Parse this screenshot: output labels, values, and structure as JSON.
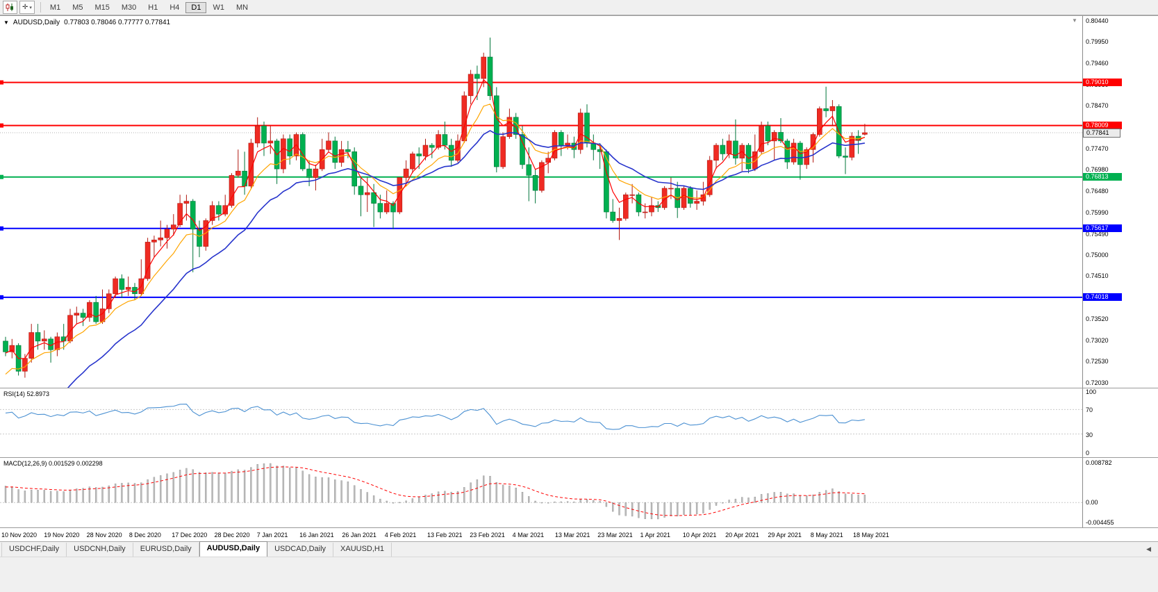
{
  "toolbar": {
    "cursor_glyph": "✛",
    "caret": "▾",
    "timeframes": [
      "M1",
      "M5",
      "M15",
      "M30",
      "H1",
      "H4",
      "D1",
      "W1",
      "MN"
    ],
    "active_timeframe": "D1"
  },
  "chart": {
    "collapse_icon": "▼",
    "shift_marker": "▼",
    "symbol": "AUDUSD,Daily",
    "ohlc_text": "0.77803 0.78046 0.77777 0.77841"
  },
  "price_axis": {
    "labels": [
      "0.80440",
      "0.79950",
      "0.79460",
      "0.78960",
      "0.78470",
      "0.77980",
      "0.77470",
      "0.76980",
      "0.76480",
      "0.75990",
      "0.75490",
      "0.75000",
      "0.74510",
      "0.74010",
      "0.73520",
      "0.73020",
      "0.72530",
      "0.72030"
    ]
  },
  "hlines": [
    {
      "value": 0.7901,
      "label": "0.79010",
      "color": "#ff0000"
    },
    {
      "value": 0.78009,
      "label": "0.78009",
      "color": "#ff0000"
    },
    {
      "value": 0.76813,
      "label": "0.76813",
      "color": "#00b050"
    },
    {
      "value": 0.75617,
      "label": "0.75617",
      "color": "#0000ff"
    },
    {
      "value": 0.74018,
      "label": "0.74018",
      "color": "#0000ff"
    }
  ],
  "current_price": {
    "value": 0.77841,
    "label": "0.77841"
  },
  "chart_data": {
    "type": "candlestick",
    "symbol": "AUDUSD",
    "timeframe": "Daily",
    "last_ohlc": {
      "open": 0.77803,
      "high": 0.78046,
      "low": 0.77777,
      "close": 0.77841
    },
    "ylim": [
      0.7203,
      0.8044
    ],
    "date_labels": [
      "10 Nov 2020",
      "19 Nov 2020",
      "28 Nov 2020",
      "8 Dec 2020",
      "17 Dec 2020",
      "28 Dec 2020",
      "7 Jan 2021",
      "16 Jan 2021",
      "26 Jan 2021",
      "4 Feb 2021",
      "13 Feb 2021",
      "23 Feb 2021",
      "4 Mar 2021",
      "13 Mar 2021",
      "23 Mar 2021",
      "1 Apr 2021",
      "10 Apr 2021",
      "20 Apr 2021",
      "29 Apr 2021",
      "8 May 2021",
      "18 May 2021"
    ],
    "moving_averages": [
      {
        "name": "ma-mid-line",
        "period": 9,
        "seed": 0.721,
        "color": "#ffa500",
        "width": 1.2
      },
      {
        "name": "ma-fast-line",
        "period": 4,
        "seed": 0.727,
        "color": "#ff0000",
        "width": 1.2
      },
      {
        "name": "ma-slow-line",
        "period": 20,
        "seed": 0.699,
        "color": "#2633cc",
        "width": 1.6
      }
    ],
    "candles": [
      [
        0.73,
        0.731,
        0.7265,
        0.7275
      ],
      [
        0.7275,
        0.7305,
        0.726,
        0.729
      ],
      [
        0.729,
        0.7295,
        0.722,
        0.723
      ],
      [
        0.723,
        0.727,
        0.7215,
        0.726
      ],
      [
        0.726,
        0.734,
        0.725,
        0.732
      ],
      [
        0.732,
        0.734,
        0.728,
        0.73
      ],
      [
        0.73,
        0.7325,
        0.728,
        0.7305
      ],
      [
        0.7305,
        0.731,
        0.725,
        0.728
      ],
      [
        0.728,
        0.732,
        0.7265,
        0.731
      ],
      [
        0.731,
        0.734,
        0.728,
        0.73
      ],
      [
        0.73,
        0.7375,
        0.7295,
        0.736
      ],
      [
        0.736,
        0.738,
        0.734,
        0.7365
      ],
      [
        0.7365,
        0.7375,
        0.7335,
        0.7355
      ],
      [
        0.7355,
        0.7395,
        0.7345,
        0.739
      ],
      [
        0.739,
        0.7405,
        0.734,
        0.7345
      ],
      [
        0.7345,
        0.742,
        0.734,
        0.7375
      ],
      [
        0.7375,
        0.742,
        0.7365,
        0.741
      ],
      [
        0.741,
        0.745,
        0.74,
        0.7445
      ],
      [
        0.7445,
        0.7455,
        0.74,
        0.742
      ],
      [
        0.742,
        0.745,
        0.7405,
        0.7425
      ],
      [
        0.7425,
        0.7435,
        0.7395,
        0.741
      ],
      [
        0.741,
        0.749,
        0.7405,
        0.7445
      ],
      [
        0.7445,
        0.754,
        0.744,
        0.753
      ],
      [
        0.753,
        0.7545,
        0.7495,
        0.7535
      ],
      [
        0.7535,
        0.758,
        0.752,
        0.754
      ],
      [
        0.754,
        0.757,
        0.7515,
        0.756
      ],
      [
        0.756,
        0.7595,
        0.7545,
        0.757
      ],
      [
        0.757,
        0.764,
        0.7565,
        0.762
      ],
      [
        0.762,
        0.764,
        0.758,
        0.7625
      ],
      [
        0.7625,
        0.763,
        0.746,
        0.756
      ],
      [
        0.756,
        0.758,
        0.7495,
        0.752
      ],
      [
        0.752,
        0.7585,
        0.751,
        0.758
      ],
      [
        0.758,
        0.7625,
        0.757,
        0.7615
      ],
      [
        0.7615,
        0.7625,
        0.758,
        0.7595
      ],
      [
        0.7595,
        0.764,
        0.759,
        0.7615
      ],
      [
        0.7615,
        0.769,
        0.761,
        0.7685
      ],
      [
        0.7685,
        0.7745,
        0.768,
        0.7695
      ],
      [
        0.7695,
        0.774,
        0.764,
        0.766
      ],
      [
        0.766,
        0.777,
        0.7655,
        0.776
      ],
      [
        0.776,
        0.782,
        0.775,
        0.78
      ],
      [
        0.78,
        0.781,
        0.773,
        0.776
      ],
      [
        0.776,
        0.78,
        0.7735,
        0.7765
      ],
      [
        0.7765,
        0.777,
        0.7665,
        0.77
      ],
      [
        0.77,
        0.778,
        0.769,
        0.777
      ],
      [
        0.777,
        0.778,
        0.771,
        0.773
      ],
      [
        0.773,
        0.7785,
        0.772,
        0.778
      ],
      [
        0.778,
        0.7785,
        0.7695,
        0.77
      ],
      [
        0.77,
        0.772,
        0.766,
        0.768
      ],
      [
        0.768,
        0.771,
        0.765,
        0.77
      ],
      [
        0.77,
        0.777,
        0.7695,
        0.7745
      ],
      [
        0.7745,
        0.7785,
        0.774,
        0.7765
      ],
      [
        0.7765,
        0.7775,
        0.77,
        0.7715
      ],
      [
        0.7715,
        0.7765,
        0.7705,
        0.7745
      ],
      [
        0.7745,
        0.7765,
        0.7725,
        0.774
      ],
      [
        0.774,
        0.775,
        0.764,
        0.766
      ],
      [
        0.766,
        0.768,
        0.759,
        0.764
      ],
      [
        0.764,
        0.768,
        0.76,
        0.7645
      ],
      [
        0.7645,
        0.7665,
        0.7565,
        0.762
      ],
      [
        0.762,
        0.764,
        0.7585,
        0.76
      ],
      [
        0.76,
        0.765,
        0.7595,
        0.762
      ],
      [
        0.762,
        0.7625,
        0.756,
        0.76
      ],
      [
        0.76,
        0.768,
        0.7595,
        0.768
      ],
      [
        0.768,
        0.772,
        0.766,
        0.77
      ],
      [
        0.77,
        0.774,
        0.769,
        0.7735
      ],
      [
        0.7735,
        0.775,
        0.77,
        0.773
      ],
      [
        0.773,
        0.777,
        0.772,
        0.7755
      ],
      [
        0.7755,
        0.776,
        0.7725,
        0.775
      ],
      [
        0.775,
        0.779,
        0.7745,
        0.778
      ],
      [
        0.778,
        0.781,
        0.7745,
        0.7755
      ],
      [
        0.7755,
        0.777,
        0.7705,
        0.772
      ],
      [
        0.772,
        0.778,
        0.7715,
        0.7765
      ],
      [
        0.7765,
        0.788,
        0.776,
        0.787
      ],
      [
        0.787,
        0.793,
        0.785,
        0.792
      ],
      [
        0.792,
        0.794,
        0.786,
        0.791
      ],
      [
        0.791,
        0.797,
        0.789,
        0.796
      ],
      [
        0.796,
        0.8005,
        0.786,
        0.787
      ],
      [
        0.787,
        0.789,
        0.7692,
        0.7705
      ],
      [
        0.7705,
        0.7785,
        0.77,
        0.7775
      ],
      [
        0.7775,
        0.784,
        0.777,
        0.782
      ],
      [
        0.782,
        0.783,
        0.777,
        0.778
      ],
      [
        0.778,
        0.78,
        0.77,
        0.771
      ],
      [
        0.771,
        0.775,
        0.7625,
        0.7685
      ],
      [
        0.7685,
        0.77,
        0.762,
        0.765
      ],
      [
        0.765,
        0.772,
        0.7645,
        0.7715
      ],
      [
        0.7715,
        0.774,
        0.769,
        0.7725
      ],
      [
        0.7725,
        0.779,
        0.772,
        0.7785
      ],
      [
        0.7785,
        0.779,
        0.773,
        0.7755
      ],
      [
        0.7755,
        0.778,
        0.7745,
        0.776
      ],
      [
        0.776,
        0.7775,
        0.7725,
        0.7745
      ],
      [
        0.7745,
        0.784,
        0.7735,
        0.783
      ],
      [
        0.783,
        0.785,
        0.775,
        0.776
      ],
      [
        0.776,
        0.778,
        0.772,
        0.7745
      ],
      [
        0.7745,
        0.776,
        0.77,
        0.774
      ],
      [
        0.774,
        0.7745,
        0.7585,
        0.76
      ],
      [
        0.76,
        0.763,
        0.7575,
        0.758
      ],
      [
        0.758,
        0.761,
        0.7535,
        0.7585
      ],
      [
        0.7585,
        0.7645,
        0.758,
        0.764
      ],
      [
        0.764,
        0.7665,
        0.762,
        0.764
      ],
      [
        0.764,
        0.7645,
        0.759,
        0.76
      ],
      [
        0.76,
        0.762,
        0.7585,
        0.76
      ],
      [
        0.76,
        0.7635,
        0.759,
        0.7615
      ],
      [
        0.7615,
        0.7625,
        0.76,
        0.761
      ],
      [
        0.761,
        0.766,
        0.7605,
        0.7655
      ],
      [
        0.7655,
        0.768,
        0.763,
        0.7655
      ],
      [
        0.7655,
        0.767,
        0.7586,
        0.761
      ],
      [
        0.761,
        0.766,
        0.7605,
        0.7655
      ],
      [
        0.7655,
        0.766,
        0.761,
        0.762
      ],
      [
        0.762,
        0.765,
        0.7605,
        0.7625
      ],
      [
        0.7625,
        0.767,
        0.7615,
        0.764
      ],
      [
        0.764,
        0.773,
        0.7635,
        0.772
      ],
      [
        0.772,
        0.776,
        0.77,
        0.7755
      ],
      [
        0.7755,
        0.777,
        0.772,
        0.7735
      ],
      [
        0.7735,
        0.778,
        0.7725,
        0.7765
      ],
      [
        0.7765,
        0.7815,
        0.771,
        0.7725
      ],
      [
        0.7725,
        0.776,
        0.7695,
        0.7755
      ],
      [
        0.7755,
        0.776,
        0.769,
        0.77
      ],
      [
        0.77,
        0.778,
        0.7695,
        0.774
      ],
      [
        0.774,
        0.781,
        0.7735,
        0.78
      ],
      [
        0.78,
        0.781,
        0.7755,
        0.7765
      ],
      [
        0.7765,
        0.779,
        0.772,
        0.7785
      ],
      [
        0.7785,
        0.7818,
        0.776,
        0.7765
      ],
      [
        0.7765,
        0.777,
        0.77,
        0.7716
      ],
      [
        0.7716,
        0.777,
        0.771,
        0.776
      ],
      [
        0.776,
        0.7765,
        0.7675,
        0.771
      ],
      [
        0.771,
        0.775,
        0.77,
        0.7745
      ],
      [
        0.7745,
        0.7785,
        0.7715,
        0.778
      ],
      [
        0.778,
        0.7845,
        0.7775,
        0.784
      ],
      [
        0.784,
        0.7891,
        0.782,
        0.7835
      ],
      [
        0.7835,
        0.786,
        0.78,
        0.7845
      ],
      [
        0.7845,
        0.785,
        0.7725,
        0.773
      ],
      [
        0.773,
        0.775,
        0.7688,
        0.7727
      ],
      [
        0.7727,
        0.7785,
        0.772,
        0.7776
      ],
      [
        0.7776,
        0.779,
        0.7735,
        0.7766
      ],
      [
        0.77803,
        0.78046,
        0.77777,
        0.77841
      ]
    ]
  },
  "rsi": {
    "label": "RSI(14) 52.8973",
    "period": 14,
    "value": "52.8973",
    "levels": [
      "100",
      "70",
      "30",
      "0"
    ]
  },
  "macd": {
    "label": "MACD(12,26,9) 0.001529 0.002298",
    "fast": 12,
    "slow": 26,
    "signal": 9,
    "values": "0.001529 0.002298",
    "axis_labels": [
      "0.008782",
      "0.00",
      "-0.004455"
    ]
  },
  "tabs": {
    "items": [
      "USDCHF,Daily",
      "USDCNH,Daily",
      "EURUSD,Daily",
      "AUDUSD,Daily",
      "USDCAD,Daily",
      "XAUUSD,H1"
    ],
    "active": "AUDUSD,Daily",
    "scroll_left": "◀"
  },
  "colors": {
    "bull": "#ef2b23",
    "bull_stroke": "#b01810",
    "bear": "#00b050",
    "bear_stroke": "#00753a",
    "rsi_line": "#4a90d2",
    "macd_hist": "#bdbdbd",
    "macd_hist_stroke": "#8f8f8f",
    "macd_signal": "#ff0000",
    "grid_dash": "#c9c9c9",
    "current_price_line": "#b0b0b0"
  }
}
